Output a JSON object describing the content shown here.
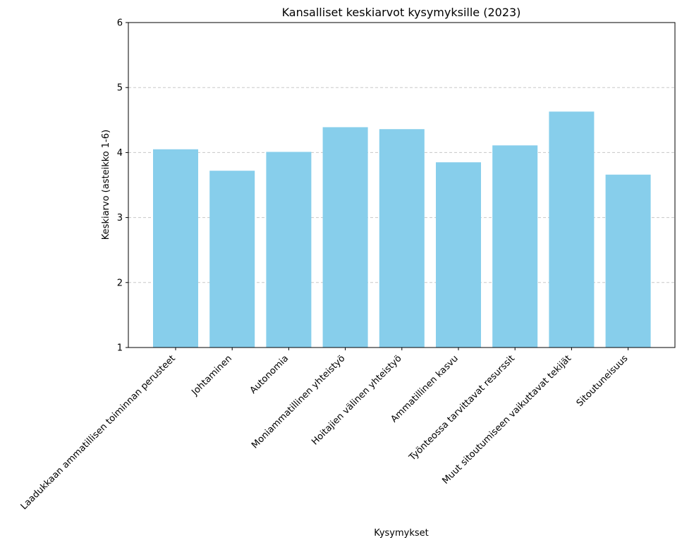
{
  "chart_data": {
    "type": "bar",
    "title": "Kansalliset keskiarvot kysymyksille (2023)",
    "xlabel": "Kysymykset",
    "ylabel": "Keskiarvo (asteikko 1-6)",
    "ylim": [
      1,
      6
    ],
    "yticks": [
      1,
      2,
      3,
      4,
      5,
      6
    ],
    "grid": "y-dashed",
    "bar_color": "#87CEEB",
    "categories": [
      "Laadukkaan ammatillisen toiminnan perusteet",
      "Johtaminen",
      "Autonomia",
      "Moniammatillinen yhteistyö",
      "Hoitajien välinen yhteistyö",
      "Ammatillinen kasvu",
      "Työnteossa tarvittavat resurssit",
      "Muut sitoutumiseen vaikuttavat tekijät",
      "Sitoutuneisuus"
    ],
    "values": [
      4.05,
      3.72,
      4.01,
      4.39,
      4.36,
      3.85,
      4.11,
      4.63,
      3.66
    ]
  }
}
